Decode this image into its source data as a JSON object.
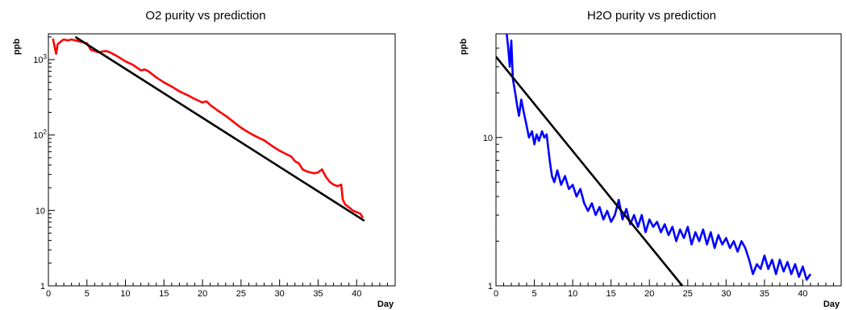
{
  "chart_data": [
    {
      "type": "line",
      "title": "O2 purity vs prediction",
      "xlabel": "Day",
      "ylabel": "ppb",
      "xlim": [
        0,
        45
      ],
      "ylim": [
        1,
        2200
      ],
      "yscale": "log",
      "grid": false,
      "x_ticks": [
        0,
        5,
        10,
        15,
        20,
        25,
        30,
        35,
        40
      ],
      "x_tick_labels": [
        "0",
        "5",
        "10",
        "15",
        "20",
        "25",
        "30",
        "35",
        "40"
      ],
      "y_ticks": [
        {
          "value": 1,
          "base": "1",
          "exp": ""
        },
        {
          "value": 10,
          "base": "10",
          "exp": ""
        },
        {
          "value": 100,
          "base": "10",
          "exp": "2"
        },
        {
          "value": 1000,
          "base": "10",
          "exp": "3"
        }
      ],
      "series": [
        {
          "color": "#ff0000",
          "x": [
            0.6,
            0.8,
            1.0,
            1.2,
            1.5,
            1.8,
            2.0,
            2.5,
            3.0,
            3.5,
            4.0,
            4.5,
            5.0,
            5.5,
            6.0,
            6.5,
            7.0,
            7.5,
            8.0,
            9.0,
            10.0,
            11.0,
            12.0,
            12.5,
            13.0,
            14.0,
            15.0,
            16.0,
            17.0,
            18.0,
            19.0,
            20.0,
            20.5,
            21.0,
            22.0,
            23.0,
            24.0,
            25.0,
            26.0,
            27.0,
            28.0,
            29.0,
            30.0,
            31.0,
            31.5,
            32.0,
            32.5,
            33.0,
            33.5,
            34.0,
            34.5,
            35.0,
            35.5,
            36.0,
            36.5,
            37.0,
            37.5,
            38.0,
            38.2,
            38.5,
            39.0,
            39.5,
            40.0,
            40.5,
            40.8
          ],
          "y": [
            1900,
            1500,
            1200,
            1600,
            1700,
            1800,
            1850,
            1800,
            1850,
            1800,
            1750,
            1700,
            1650,
            1350,
            1300,
            1250,
            1280,
            1300,
            1250,
            1100,
            950,
            850,
            720,
            740,
            700,
            580,
            500,
            440,
            380,
            340,
            300,
            270,
            280,
            250,
            210,
            180,
            150,
            125,
            108,
            95,
            85,
            72,
            62,
            55,
            52,
            45,
            42,
            35,
            33,
            32,
            31,
            32,
            35,
            28,
            24,
            22,
            21,
            22,
            14,
            12,
            11,
            10,
            9.5,
            9,
            8
          ]
        },
        {
          "color": "#000000",
          "x": [
            3.5,
            41.0
          ],
          "y": [
            2000,
            7.3
          ]
        }
      ]
    },
    {
      "type": "line",
      "title": "H2O purity vs prediction",
      "xlabel": "Day",
      "ylabel": "ppb",
      "xlim": [
        0,
        45
      ],
      "ylim": [
        1,
        50
      ],
      "yscale": "log",
      "grid": false,
      "x_ticks": [
        0,
        5,
        10,
        15,
        20,
        25,
        30,
        35,
        40
      ],
      "x_tick_labels": [
        "0",
        "5",
        "10",
        "15",
        "20",
        "25",
        "30",
        "35",
        "40"
      ],
      "y_ticks": [
        {
          "value": 1,
          "base": "1",
          "exp": ""
        },
        {
          "value": 10,
          "base": "10",
          "exp": ""
        }
      ],
      "series": [
        {
          "color": "#0000ff",
          "x": [
            1.4,
            1.6,
            1.8,
            2.0,
            2.2,
            2.5,
            2.8,
            3.0,
            3.3,
            3.6,
            4.0,
            4.3,
            4.7,
            5.0,
            5.3,
            5.6,
            6.0,
            6.3,
            6.6,
            7.0,
            7.3,
            7.6,
            8.0,
            8.5,
            9.0,
            9.5,
            10.0,
            10.5,
            11.0,
            11.5,
            12.0,
            12.5,
            13.0,
            13.5,
            14.0,
            14.5,
            15.0,
            15.5,
            16.0,
            16.5,
            17.0,
            17.5,
            18.0,
            18.5,
            19.0,
            19.5,
            20.0,
            20.5,
            21.0,
            21.5,
            22.0,
            22.5,
            23.0,
            23.5,
            24.0,
            24.5,
            25.0,
            25.5,
            26.0,
            26.5,
            27.0,
            27.5,
            28.0,
            28.5,
            29.0,
            29.5,
            30.0,
            30.5,
            31.0,
            31.5,
            32.0,
            32.5,
            33.0,
            33.5,
            34.0,
            34.5,
            35.0,
            35.5,
            36.0,
            36.5,
            37.0,
            37.5,
            38.0,
            38.5,
            39.0,
            39.5,
            40.0,
            40.5,
            41.0
          ],
          "y": [
            50,
            40,
            30,
            45,
            25,
            20,
            16,
            14,
            18,
            15,
            12,
            10,
            11,
            9,
            10.5,
            9.5,
            11,
            10,
            10.5,
            7,
            5.5,
            5,
            6,
            4.8,
            5.5,
            4.5,
            4.8,
            4.0,
            4.5,
            3.6,
            3.2,
            3.6,
            3.0,
            3.4,
            2.8,
            3.2,
            2.7,
            3.0,
            3.8,
            2.8,
            3.3,
            2.6,
            3.0,
            2.5,
            3.0,
            2.3,
            2.8,
            2.5,
            2.7,
            2.3,
            2.6,
            2.2,
            2.5,
            2.0,
            2.4,
            2.1,
            2.5,
            1.9,
            2.3,
            2.0,
            2.4,
            1.9,
            2.3,
            1.8,
            2.2,
            1.9,
            2.1,
            1.8,
            2.0,
            1.7,
            2.0,
            1.8,
            1.5,
            1.2,
            1.4,
            1.3,
            1.6,
            1.3,
            1.5,
            1.2,
            1.5,
            1.25,
            1.45,
            1.2,
            1.4,
            1.15,
            1.35,
            1.1,
            1.2
          ]
        },
        {
          "color": "#000000",
          "x": [
            0.0,
            24.3
          ],
          "y": [
            35,
            1.0
          ]
        }
      ]
    }
  ]
}
